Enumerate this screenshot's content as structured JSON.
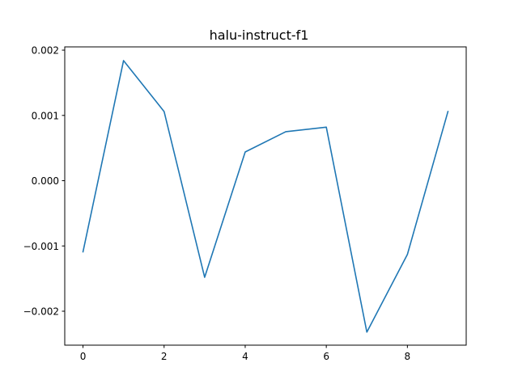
{
  "chart_data": {
    "type": "line",
    "title": "halu-instruct-f1",
    "xlabel": "",
    "ylabel": "",
    "xlim": [
      -0.45,
      9.45
    ],
    "ylim": [
      -0.00252,
      0.00205
    ],
    "xticks": [
      0,
      2,
      4,
      6,
      8
    ],
    "xtick_labels": [
      "0",
      "2",
      "4",
      "6",
      "8"
    ],
    "yticks": [
      -0.002,
      -0.001,
      0.0,
      0.001,
      0.002
    ],
    "ytick_labels": [
      "−0.002",
      "−0.001",
      "0.000",
      "0.001",
      "0.002"
    ],
    "grid": false,
    "legend": "none",
    "series": [
      {
        "color": "#1f77b4",
        "x": [
          0,
          1,
          2,
          3,
          4,
          5,
          6,
          7,
          8,
          9
        ],
        "y": [
          -0.00109,
          0.00184,
          0.00106,
          -0.00148,
          0.00044,
          0.00075,
          0.00082,
          -0.00232,
          -0.00113,
          0.00106
        ]
      }
    ]
  }
}
